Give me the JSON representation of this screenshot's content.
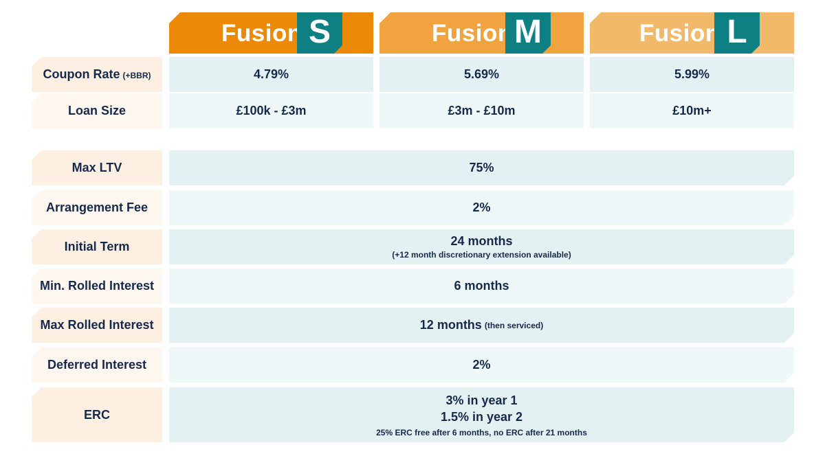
{
  "plans": [
    {
      "name": "Fusion",
      "badge": "S",
      "color": "#ec8a08"
    },
    {
      "name": "Fusion",
      "badge": "M",
      "color": "#f1a33f"
    },
    {
      "name": "Fusion",
      "badge": "L",
      "color": "#f2b96b"
    }
  ],
  "badge_color": "#0e7f82",
  "tiered_rows": [
    {
      "label": "Coupon Rate",
      "label_note": "(+BBR)",
      "values": [
        "4.79%",
        "5.69%",
        "5.99%"
      ]
    },
    {
      "label": "Loan Size",
      "values": [
        "£100k - £3m",
        "£3m - £10m",
        "£10m+"
      ]
    }
  ],
  "common_rows": {
    "max_ltv": {
      "label": "Max LTV",
      "value": "75%"
    },
    "arrangement_fee": {
      "label": "Arrangement Fee",
      "value": "2%"
    },
    "initial_term": {
      "label": "Initial Term",
      "value": "24 months",
      "note": "(+12 month discretionary extension available)"
    },
    "min_rolled_interest": {
      "label": "Min. Rolled Interest",
      "value": "6 months"
    },
    "max_rolled_interest": {
      "label": "Max Rolled Interest",
      "value": "12 months",
      "note": "(then serviced)"
    },
    "deferred_interest": {
      "label": "Deferred Interest",
      "value": "2%"
    },
    "erc": {
      "label": "ERC",
      "line1": "3% in year 1",
      "line2": "1.5% in year 2",
      "note": "25% ERC free after 6 months, no ERC after 21 months"
    }
  }
}
